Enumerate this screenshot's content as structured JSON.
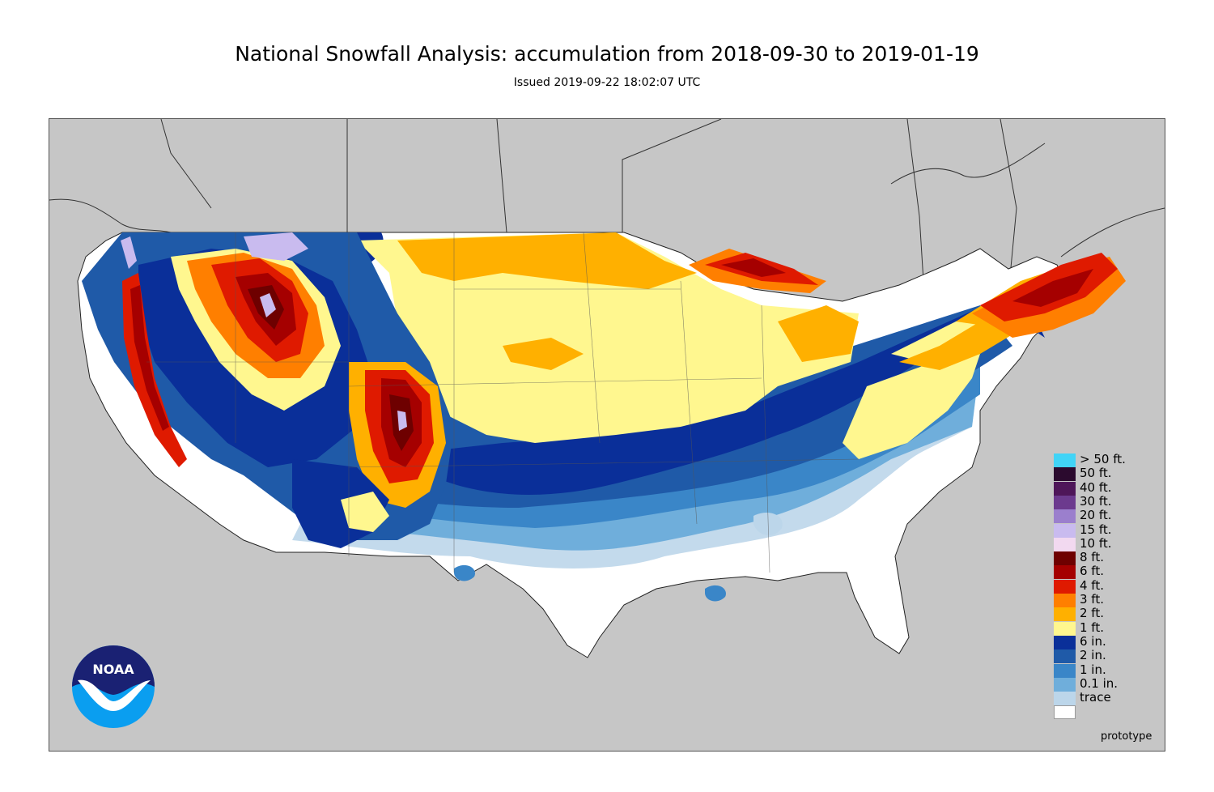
{
  "header": {
    "title": "National Snowfall Analysis: accumulation from 2018-09-30 to 2019-01-19",
    "issued": "Issued 2019-09-22 18:02:07 UTC"
  },
  "logo": {
    "text": "NOAA",
    "icon": "noaa-logo-icon"
  },
  "footer": {
    "prototype_label": "prototype"
  },
  "colors": {
    "land_background": "#c6c6c6",
    "border_lines": "#333333"
  },
  "legend": [
    {
      "label": "> 50 ft.",
      "color": "#41d4f7"
    },
    {
      "label": "50 ft.",
      "color": "#2b0a2e"
    },
    {
      "label": "40 ft.",
      "color": "#4e1659"
    },
    {
      "label": "30 ft.",
      "color": "#6c3a8e"
    },
    {
      "label": "20 ft.",
      "color": "#9b7fcd"
    },
    {
      "label": "15 ft.",
      "color": "#c9bbef"
    },
    {
      "label": "10 ft.",
      "color": "#f2d9f0"
    },
    {
      "label": "8 ft.",
      "color": "#6e0000"
    },
    {
      "label": "6 ft.",
      "color": "#a50000"
    },
    {
      "label": "4 ft.",
      "color": "#df1a00"
    },
    {
      "label": "3 ft.",
      "color": "#ff7f00"
    },
    {
      "label": "2 ft.",
      "color": "#ffb000"
    },
    {
      "label": "1 ft.",
      "color": "#fff78f"
    },
    {
      "label": "6 in.",
      "color": "#0a2f99"
    },
    {
      "label": "2 in.",
      "color": "#1f5aa8"
    },
    {
      "label": "1 in.",
      "color": "#3a86c8"
    },
    {
      "label": "0.1 in.",
      "color": "#6faedb"
    },
    {
      "label": "trace",
      "color": "#bcd6ea"
    },
    {
      "label": "",
      "color": "#ffffff"
    }
  ]
}
